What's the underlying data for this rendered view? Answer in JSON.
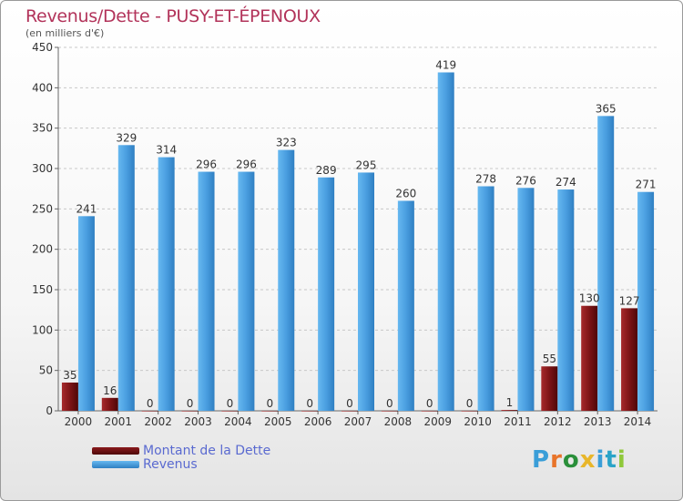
{
  "header": {
    "title": "Revenus/Dette - PUSY-ET-ÉPENOUX",
    "subtitle": "(en milliers d'€)"
  },
  "legend": {
    "items": [
      {
        "label": "Montant de la Dette",
        "color": "#6b0f10"
      },
      {
        "label": "Revenus",
        "color": "#4a9ee0"
      }
    ]
  },
  "logo": {
    "text": "Proxiti",
    "colors": [
      "#3a9ed8",
      "#e8742a",
      "#2a8f3a",
      "#e8b62a",
      "#3a9ed8",
      "#2aa3c8",
      "#8fc83a"
    ]
  },
  "chart_data": {
    "type": "bar",
    "title": "Revenus/Dette - PUSY-ET-ÉPENOUX",
    "ylabel": "(en milliers d'€)",
    "xlabel": "",
    "ylim": [
      0,
      450
    ],
    "yticks": [
      0,
      50,
      100,
      150,
      200,
      250,
      300,
      350,
      400,
      450
    ],
    "grid": true,
    "categories": [
      "2000",
      "2001",
      "2002",
      "2003",
      "2004",
      "2005",
      "2006",
      "2007",
      "2008",
      "2009",
      "2010",
      "2011",
      "2012",
      "2013",
      "2014"
    ],
    "series": [
      {
        "name": "Montant de la Dette",
        "color": "#6b0f10",
        "values": [
          35,
          16,
          0,
          0,
          0,
          0,
          0,
          0,
          0,
          0,
          0,
          1,
          55,
          130,
          127
        ]
      },
      {
        "name": "Revenus",
        "color": "#4a9ee0",
        "values": [
          241,
          329,
          314,
          296,
          296,
          323,
          289,
          295,
          260,
          419,
          278,
          276,
          274,
          365,
          271
        ]
      }
    ]
  }
}
